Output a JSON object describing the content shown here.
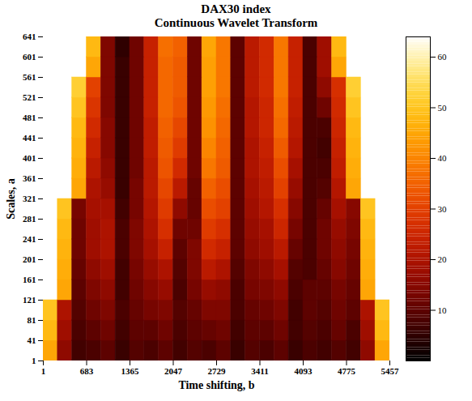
{
  "chart_data": {
    "type": "heatmap",
    "title": "DAX30 index",
    "subtitle": "Continuous Wavelet Transform",
    "x_label": "Time shifting, b",
    "y_label": "Scales, a",
    "xlim": [
      1,
      5457
    ],
    "ylim": [
      1,
      641
    ],
    "xticks": [
      1,
      683,
      1365,
      2047,
      2729,
      3411,
      4093,
      4775,
      5457
    ],
    "yticks": [
      1,
      41,
      81,
      121,
      161,
      201,
      241,
      281,
      321,
      361,
      401,
      441,
      481,
      521,
      561,
      601,
      641
    ],
    "x_edges": [
      1,
      228,
      455,
      683,
      910,
      1137,
      1365,
      1592,
      1819,
      2047,
      2274,
      2501,
      2729,
      2956,
      3183,
      3411,
      3638,
      3865,
      4093,
      4320,
      4547,
      4775,
      5002,
      5229,
      5457
    ],
    "y_edges": [
      1,
      41,
      81,
      121,
      161,
      201,
      241,
      281,
      321,
      361,
      401,
      441,
      481,
      521,
      561,
      601,
      641
    ],
    "values": [
      [
        45,
        16,
        7,
        8,
        10,
        6,
        9,
        8,
        10,
        7,
        9,
        8,
        10,
        6,
        9,
        8,
        10,
        6,
        8,
        7,
        9,
        7,
        16,
        45
      ],
      [
        48,
        18,
        8,
        10,
        12,
        7,
        10,
        10,
        12,
        8,
        10,
        11,
        12,
        7,
        10,
        10,
        12,
        7,
        9,
        8,
        11,
        8,
        18,
        48
      ],
      [
        50,
        20,
        9,
        12,
        14,
        8,
        11,
        13,
        14,
        9,
        11,
        14,
        14,
        8,
        11,
        12,
        14,
        7,
        10,
        9,
        12,
        10,
        20,
        50
      ],
      [
        null,
        45,
        10,
        14,
        16,
        7,
        12,
        15,
        17,
        8,
        13,
        17,
        16,
        8,
        13,
        14,
        16,
        8,
        10,
        10,
        13,
        11,
        45,
        null
      ],
      [
        null,
        46,
        11,
        16,
        18,
        7,
        13,
        17,
        20,
        9,
        14,
        22,
        20,
        9,
        14,
        16,
        19,
        9,
        8,
        11,
        15,
        12,
        46,
        null
      ],
      [
        null,
        47,
        12,
        18,
        20,
        8,
        14,
        19,
        24,
        10,
        14,
        26,
        24,
        10,
        16,
        18,
        22,
        11,
        8,
        12,
        16,
        13,
        47,
        null
      ],
      [
        null,
        48,
        12,
        18,
        20,
        8,
        14,
        20,
        27,
        12,
        12,
        29,
        27,
        10,
        17,
        19,
        25,
        13,
        8,
        12,
        17,
        14,
        48,
        null
      ],
      [
        null,
        50,
        13,
        19,
        19,
        7,
        13,
        21,
        29,
        16,
        11,
        32,
        30,
        10,
        18,
        21,
        27,
        15,
        8,
        11,
        19,
        15,
        50,
        null
      ],
      [
        null,
        null,
        45,
        20,
        17,
        6,
        13,
        22,
        31,
        22,
        11,
        35,
        32,
        10,
        19,
        22,
        30,
        17,
        8,
        9,
        21,
        45,
        null,
        null
      ],
      [
        null,
        null,
        46,
        22,
        16,
        6,
        12,
        22,
        33,
        26,
        12,
        38,
        34,
        10,
        20,
        23,
        32,
        19,
        8,
        8,
        23,
        46,
        null,
        null
      ],
      [
        null,
        null,
        47,
        24,
        15,
        6,
        12,
        23,
        34,
        29,
        12,
        40,
        35,
        10,
        20,
        24,
        34,
        21,
        8,
        7,
        24,
        47,
        null,
        null
      ],
      [
        null,
        null,
        48,
        26,
        15,
        6,
        12,
        23,
        35,
        31,
        12,
        42,
        36,
        10,
        21,
        25,
        36,
        22,
        8,
        8,
        25,
        48,
        null,
        null
      ],
      [
        null,
        null,
        50,
        28,
        14,
        6,
        12,
        24,
        36,
        33,
        12,
        43,
        37,
        10,
        21,
        25,
        37,
        23,
        8,
        12,
        26,
        50,
        null,
        null
      ],
      [
        null,
        null,
        52,
        30,
        14,
        6,
        12,
        24,
        36,
        34,
        12,
        44,
        38,
        10,
        22,
        26,
        38,
        24,
        8,
        16,
        27,
        52,
        null,
        null
      ],
      [
        null,
        null,
        null,
        45,
        14,
        6,
        12,
        24,
        36,
        34,
        12,
        44,
        38,
        10,
        22,
        26,
        38,
        24,
        8,
        18,
        45,
        null,
        null,
        null
      ],
      [
        null,
        null,
        null,
        48,
        14,
        5,
        12,
        24,
        37,
        35,
        12,
        45,
        38,
        10,
        22,
        26,
        38,
        24,
        8,
        18,
        48,
        null,
        null,
        null
      ]
    ],
    "colorbar": {
      "range": [
        0,
        64
      ],
      "ticks": [
        10,
        20,
        30,
        40,
        50,
        60
      ]
    }
  }
}
